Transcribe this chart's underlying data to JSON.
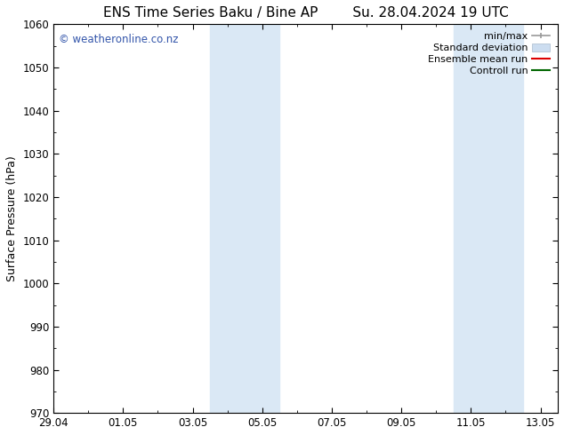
{
  "title_left": "ENS Time Series Baku / Bine AP",
  "title_right": "Su. 28.04.2024 19 UTC",
  "ylabel": "Surface Pressure (hPa)",
  "ylim": [
    970,
    1060
  ],
  "yticks": [
    970,
    980,
    990,
    1000,
    1010,
    1020,
    1030,
    1040,
    1050,
    1060
  ],
  "xtick_labels": [
    "29.04",
    "01.05",
    "03.05",
    "05.05",
    "07.05",
    "09.05",
    "11.05",
    "13.05"
  ],
  "xlim_days": [
    0,
    14.5
  ],
  "shaded_bands": [
    {
      "x_start": 4.5,
      "x_end": 6.5
    },
    {
      "x_start": 11.5,
      "x_end": 13.5
    }
  ],
  "left_blue_line_x": 0.0,
  "band_color": "#dae8f5",
  "watermark_text": "© weatheronline.co.nz",
  "watermark_color": "#3355aa",
  "background_color": "#ffffff",
  "plot_bg_color": "#ffffff",
  "legend_labels": [
    "min/max",
    "Standard deviation",
    "Ensemble mean run",
    "Controll run"
  ],
  "legend_colors": [
    "#999999",
    "#ccddf0",
    "#dd0000",
    "#006600"
  ],
  "title_fontsize": 11,
  "axis_label_fontsize": 9,
  "tick_fontsize": 8.5,
  "legend_fontsize": 8,
  "watermark_fontsize": 8.5
}
